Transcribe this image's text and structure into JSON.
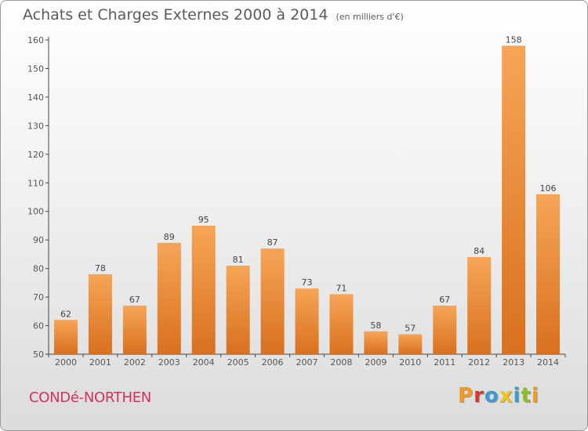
{
  "header": {
    "title": "Achats et Charges Externes 2000 à 2014",
    "unit": "(en milliers d'€)"
  },
  "footer": {
    "place": "CONDé-NORTHEN",
    "brand": "Proxiti"
  },
  "colors": {
    "bar_light": "#f6a557",
    "bar_dark": "#d8701f",
    "place_text": "#d5315a",
    "brand_letters": [
      "#f39a1f",
      "#d53a2c",
      "#3c9ad6",
      "#f2c21a",
      "#3c9ad6",
      "#8cbf26",
      "#f39a1f"
    ]
  },
  "chart_data": {
    "type": "bar",
    "title": "Achats et Charges Externes 2000 à 2014",
    "subtitle": "(en milliers d'€)",
    "xlabel": "",
    "ylabel": "",
    "categories": [
      "2000",
      "2001",
      "2002",
      "2003",
      "2004",
      "2005",
      "2006",
      "2007",
      "2008",
      "2009",
      "2010",
      "2011",
      "2012",
      "2013",
      "2014"
    ],
    "values": [
      62,
      78,
      67,
      89,
      95,
      81,
      87,
      73,
      71,
      58,
      57,
      67,
      84,
      158,
      106
    ],
    "ylim": [
      50,
      160
    ],
    "yticks": [
      50,
      60,
      70,
      80,
      90,
      100,
      110,
      120,
      130,
      140,
      150,
      160
    ],
    "grid": false,
    "legend": "none"
  }
}
